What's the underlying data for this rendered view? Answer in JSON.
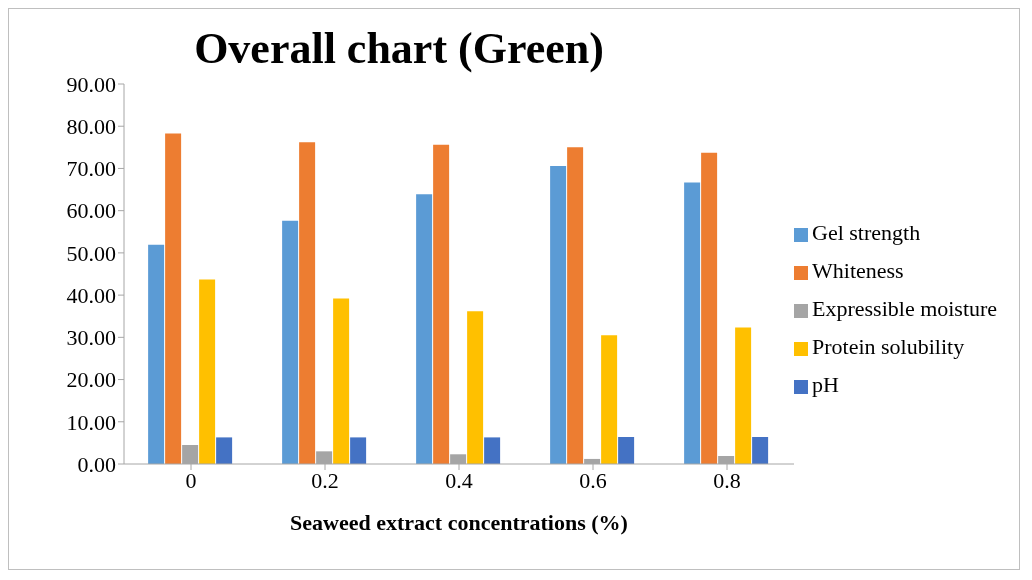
{
  "chart_data": {
    "type": "bar",
    "title": "Overall chart (Green)",
    "xlabel": "Seaweed extract concentrations (%)",
    "categories": [
      "0",
      "0.2",
      "0.4",
      "0.6",
      "0.8"
    ],
    "series": [
      {
        "name": "Gel strength",
        "color": "#5b9bd5",
        "values": [
          51.9,
          57.6,
          63.9,
          70.6,
          66.7
        ]
      },
      {
        "name": "Whiteness",
        "color": "#ed7d31",
        "values": [
          78.3,
          76.2,
          75.6,
          75.0,
          73.7
        ]
      },
      {
        "name": "Expressible moisture",
        "color": "#a5a5a5",
        "values": [
          4.5,
          3.0,
          2.3,
          1.2,
          1.9
        ]
      },
      {
        "name": "Protein solubility",
        "color": "#ffc000",
        "values": [
          43.7,
          39.2,
          36.2,
          30.5,
          32.3
        ]
      },
      {
        "name": "pH",
        "color": "#4472c4",
        "values": [
          6.3,
          6.3,
          6.3,
          6.4,
          6.4
        ]
      }
    ],
    "ylim": [
      0,
      90
    ],
    "yticks": [
      {
        "value": 0,
        "label": "0.00"
      },
      {
        "value": 10,
        "label": "10.00"
      },
      {
        "value": 20,
        "label": "20.00"
      },
      {
        "value": 30,
        "label": "30.00"
      },
      {
        "value": 40,
        "label": "40.00"
      },
      {
        "value": 50,
        "label": "50.00"
      },
      {
        "value": 60,
        "label": "60.00"
      },
      {
        "value": 70,
        "label": "70.00"
      },
      {
        "value": 80,
        "label": "80.00"
      },
      {
        "value": 90,
        "label": "90.00"
      }
    ],
    "grid": false,
    "legend": "right"
  }
}
